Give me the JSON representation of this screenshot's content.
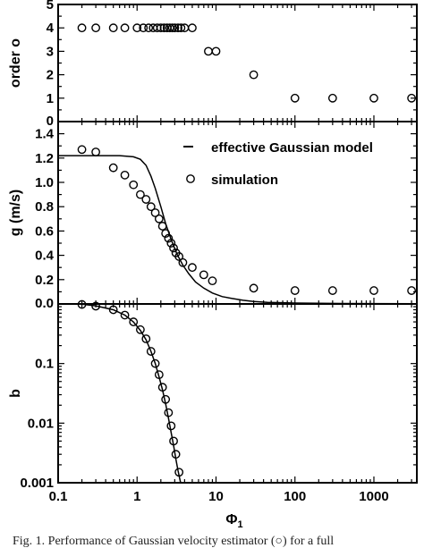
{
  "caption": "Fig. 1. Performance of Gaussian velocity estimator (○) for a full",
  "chart_data": {
    "type": "scatter",
    "shared_x": {
      "label": "Φ",
      "label_subscript": "1",
      "scale": "log",
      "lim": [
        0.1,
        3500
      ],
      "ticks": [
        0.1,
        1,
        10,
        100,
        1000
      ],
      "tick_labels": [
        "0.1",
        "1",
        "10",
        "100",
        "1000"
      ]
    },
    "panels": [
      {
        "ylabel": "order o",
        "yscale": "linear",
        "ylim": [
          0,
          5
        ],
        "yticks": [
          0,
          1,
          2,
          3,
          4,
          5
        ],
        "ytick_labels": [
          "0",
          "1",
          "2",
          "3",
          "4",
          "5"
        ],
        "series": [
          {
            "marker": "circle",
            "x": [
              0.2,
              0.3,
              0.5,
              0.7,
              1.0,
              1.2,
              1.4,
              1.6,
              1.8,
              2.0,
              2.2,
              2.4,
              2.6,
              2.8,
              3.0,
              3.3,
              3.6,
              4.0,
              5.0,
              8,
              10,
              30,
              100,
              300,
              1000,
              3000
            ],
            "y": [
              4,
              4,
              4,
              4,
              4,
              4,
              4,
              4,
              4,
              4,
              4,
              4,
              4,
              4,
              4,
              4,
              4,
              4,
              4,
              3,
              3,
              2,
              1,
              1,
              1,
              1
            ]
          }
        ]
      },
      {
        "ylabel": "g (m/s)",
        "yscale": "linear",
        "ylim": [
          0,
          1.5
        ],
        "yticks": [
          0,
          0.2,
          0.4,
          0.6,
          0.8,
          1.0,
          1.2,
          1.4
        ],
        "ytick_labels": [
          "0.0",
          "0.2",
          "0.4",
          "0.6",
          "0.8",
          "1.0",
          "1.2",
          "1.4"
        ],
        "legend": {
          "position": "top-right",
          "entries": [
            "effective Gaussian model",
            "simulation"
          ]
        },
        "series": [
          {
            "name": "effective Gaussian model",
            "style": "line",
            "x": [
              0.1,
              0.3,
              0.6,
              0.9,
              1.1,
              1.3,
              1.5,
              1.7,
              2.0,
              2.3,
              2.7,
              3.2,
              3.8,
              4.5,
              5.5,
              7,
              9,
              12,
              16,
              22,
              30,
              45,
              70,
              100,
              200,
              400,
              1000,
              3500
            ],
            "y": [
              1.22,
              1.22,
              1.22,
              1.21,
              1.19,
              1.14,
              1.05,
              0.95,
              0.8,
              0.66,
              0.53,
              0.41,
              0.32,
              0.25,
              0.18,
              0.13,
              0.09,
              0.06,
              0.045,
              0.03,
              0.02,
              0.013,
              0.01,
              0.007,
              0.005,
              0.004,
              0.003,
              0.002
            ]
          },
          {
            "name": "simulation",
            "style": "marker",
            "x": [
              0.2,
              0.3,
              0.5,
              0.7,
              0.9,
              1.1,
              1.3,
              1.5,
              1.7,
              1.9,
              2.1,
              2.3,
              2.5,
              2.7,
              2.9,
              3.1,
              3.4,
              3.8,
              5.0,
              7,
              9,
              30,
              100,
              300,
              1000,
              3000
            ],
            "y": [
              1.27,
              1.25,
              1.12,
              1.06,
              0.98,
              0.9,
              0.86,
              0.8,
              0.75,
              0.7,
              0.64,
              0.58,
              0.54,
              0.5,
              0.46,
              0.42,
              0.39,
              0.34,
              0.3,
              0.24,
              0.19,
              0.13,
              0.11,
              0.11,
              0.11,
              0.11
            ]
          }
        ]
      },
      {
        "ylabel": "b",
        "yscale": "log",
        "ylim": [
          0.001,
          1
        ],
        "yticks": [
          0.001,
          0.01,
          0.1
        ],
        "ytick_labels": [
          "0.001",
          "0.01",
          "0.1"
        ],
        "series": [
          {
            "style": "line",
            "x": [
              0.1,
              0.2,
              0.3,
              0.5,
              0.7,
              0.9,
              1.1,
              1.3,
              1.5,
              1.7,
              1.9,
              2.1,
              2.3,
              2.5,
              2.7,
              2.9,
              3.1,
              3.3,
              3.5,
              3.7
            ],
            "y": [
              1.05,
              0.99,
              0.93,
              0.8,
              0.65,
              0.5,
              0.36,
              0.25,
              0.16,
              0.1,
              0.06,
              0.036,
              0.021,
              0.012,
              0.007,
              0.0042,
              0.0025,
              0.0016,
              0.0011,
              0.0008
            ]
          },
          {
            "style": "marker",
            "x": [
              0.2,
              0.3,
              0.5,
              0.7,
              0.9,
              1.1,
              1.3,
              1.5,
              1.7,
              1.9,
              2.1,
              2.3,
              2.5,
              2.7,
              2.9,
              3.1,
              3.4
            ],
            "y": [
              0.98,
              0.92,
              0.8,
              0.65,
              0.5,
              0.37,
              0.26,
              0.16,
              0.1,
              0.065,
              0.04,
              0.025,
              0.015,
              0.009,
              0.005,
              0.003,
              0.0015
            ]
          }
        ]
      }
    ]
  }
}
